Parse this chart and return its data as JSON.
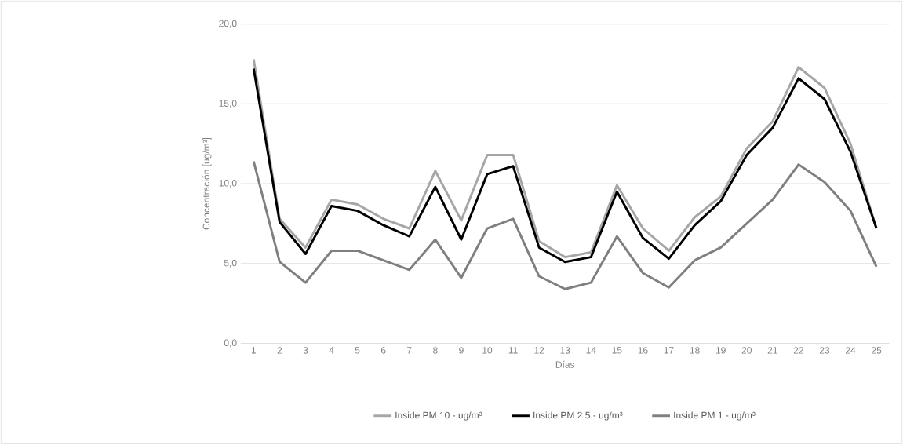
{
  "chart_data": {
    "type": "line",
    "xlabel": "Días",
    "ylabel": "Concentración [ug/m³]",
    "categories": [
      "1",
      "2",
      "3",
      "4",
      "5",
      "6",
      "7",
      "8",
      "9",
      "10",
      "11",
      "12",
      "13",
      "14",
      "15",
      "16",
      "17",
      "18",
      "19",
      "20",
      "21",
      "22",
      "23",
      "24",
      "25"
    ],
    "ylim": [
      0,
      20
    ],
    "yticks": [
      {
        "value": 0,
        "label": "0,0"
      },
      {
        "value": 5,
        "label": "5,0"
      },
      {
        "value": 10,
        "label": "10,0"
      },
      {
        "value": 15,
        "label": "15,0"
      },
      {
        "value": 20,
        "label": "20,0"
      }
    ],
    "grid": "y",
    "legend": "bottom",
    "marker": "none",
    "line_style": "solid",
    "series": [
      {
        "name": "Inside PM 10 - ug/m³",
        "color": "#a6a6a6",
        "values": [
          17.8,
          7.8,
          6.0,
          9.0,
          8.7,
          7.8,
          7.2,
          10.8,
          7.7,
          11.8,
          11.8,
          6.4,
          5.4,
          5.7,
          9.9,
          7.2,
          5.8,
          7.9,
          9.2,
          12.2,
          13.9,
          17.3,
          16.0,
          12.5,
          7.2
        ]
      },
      {
        "name": "Inside PM 2.5 - ug/m³",
        "color": "#000000",
        "values": [
          17.2,
          7.6,
          5.6,
          8.6,
          8.3,
          7.4,
          6.7,
          9.8,
          6.5,
          10.6,
          11.1,
          6.0,
          5.1,
          5.4,
          9.5,
          6.6,
          5.3,
          7.4,
          8.9,
          11.8,
          13.5,
          16.6,
          15.3,
          12.0,
          7.2
        ]
      },
      {
        "name": "Inside PM 1 - ug/m³",
        "color": "#7f7f7f",
        "values": [
          11.4,
          5.1,
          3.8,
          5.8,
          5.8,
          5.2,
          4.6,
          6.5,
          4.1,
          7.2,
          7.8,
          4.2,
          3.4,
          3.8,
          6.7,
          4.4,
          3.5,
          5.2,
          6.0,
          7.5,
          9.0,
          11.2,
          10.1,
          8.3,
          4.8
        ]
      }
    ]
  }
}
